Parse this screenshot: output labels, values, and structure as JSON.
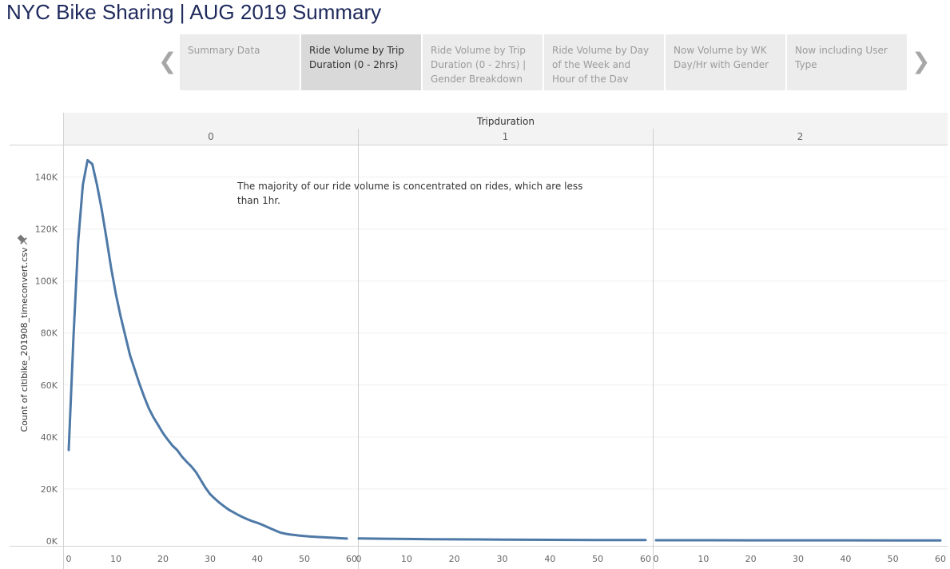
{
  "title": "NYC Bike Sharing | AUG 2019 Summary",
  "navigation": {
    "prev_icon": "chevron-left-icon",
    "next_icon": "chevron-right-icon",
    "tabs": [
      {
        "label": "Summary Data",
        "active": false
      },
      {
        "label": "Ride Volume by Trip Duration (0 - 2hrs)",
        "active": true
      },
      {
        "label": "Ride Volume by Trip Duration (0 - 2hrs) | Gender Breakdown",
        "active": false
      },
      {
        "label": "Ride Volume by Day of the Week and Hour of the Dav",
        "active": false
      },
      {
        "label": "Now Volume by WK Day/Hr with Gender",
        "active": false
      },
      {
        "label": "Now including User Type",
        "active": false
      }
    ]
  },
  "annotation": "The majority of our ride volume is concentrated on rides, which are less than 1hr.",
  "colors": {
    "line": "#4e79a7",
    "title": "#1f2a5c",
    "tab_active": "#d9d9d9",
    "tab_inactive": "#ececec"
  },
  "chart_data": {
    "type": "line",
    "title": "",
    "column_header": "Tripduration",
    "panels": [
      "0",
      "1",
      "2"
    ],
    "xlabel": "",
    "ylabel": "Count of citibike_201908_timeconvert.csv",
    "ylabel_icon": "pin-icon",
    "xlim": [
      0,
      60
    ],
    "ylim": [
      0,
      150000
    ],
    "x_ticks": [
      0,
      10,
      20,
      30,
      40,
      50,
      60
    ],
    "y_ticks": [
      0,
      20000,
      40000,
      60000,
      80000,
      100000,
      120000,
      140000
    ],
    "y_tick_labels": [
      "0K",
      "20K",
      "40K",
      "60K",
      "80K",
      "100K",
      "120K",
      "140K"
    ],
    "grid": true,
    "series": [
      {
        "panel": "0",
        "x": [
          0,
          1,
          2,
          3,
          4,
          5,
          6,
          7,
          8,
          9,
          10,
          11,
          12,
          13,
          14,
          15,
          16,
          17,
          18,
          19,
          20,
          21,
          22,
          23,
          24,
          25,
          26,
          27,
          28,
          29,
          30,
          31,
          32,
          33,
          34,
          35,
          36,
          37,
          38,
          39,
          40,
          41,
          42,
          43,
          44,
          45,
          46,
          47,
          48,
          49,
          50,
          51,
          52,
          53,
          54,
          55,
          56,
          57,
          58,
          59
        ],
        "y": [
          35000,
          78000,
          115000,
          137000,
          146500,
          145000,
          137000,
          127500,
          116500,
          105000,
          95000,
          86500,
          79000,
          71500,
          66000,
          60500,
          55500,
          51000,
          47500,
          44500,
          41500,
          39000,
          36700,
          35000,
          32500,
          30500,
          28700,
          26500,
          23500,
          20500,
          18000,
          16300,
          14700,
          13300,
          12000,
          11000,
          10000,
          9100,
          8300,
          7600,
          7000,
          6300,
          5500,
          4700,
          3900,
          3200,
          2800,
          2500,
          2300,
          2100,
          1900,
          1750,
          1650,
          1550,
          1450,
          1350,
          1250,
          1150,
          1050,
          950
        ]
      },
      {
        "panel": "1",
        "x": [
          0,
          5,
          10,
          15,
          20,
          25,
          30,
          35,
          40,
          45,
          50,
          55,
          60
        ],
        "y": [
          1000,
          900,
          800,
          700,
          650,
          600,
          550,
          500,
          450,
          420,
          400,
          380,
          360
        ]
      },
      {
        "panel": "2",
        "x": [
          0,
          10,
          20,
          30,
          40,
          50,
          60
        ],
        "y": [
          320,
          300,
          290,
          280,
          270,
          260,
          250
        ]
      }
    ]
  }
}
